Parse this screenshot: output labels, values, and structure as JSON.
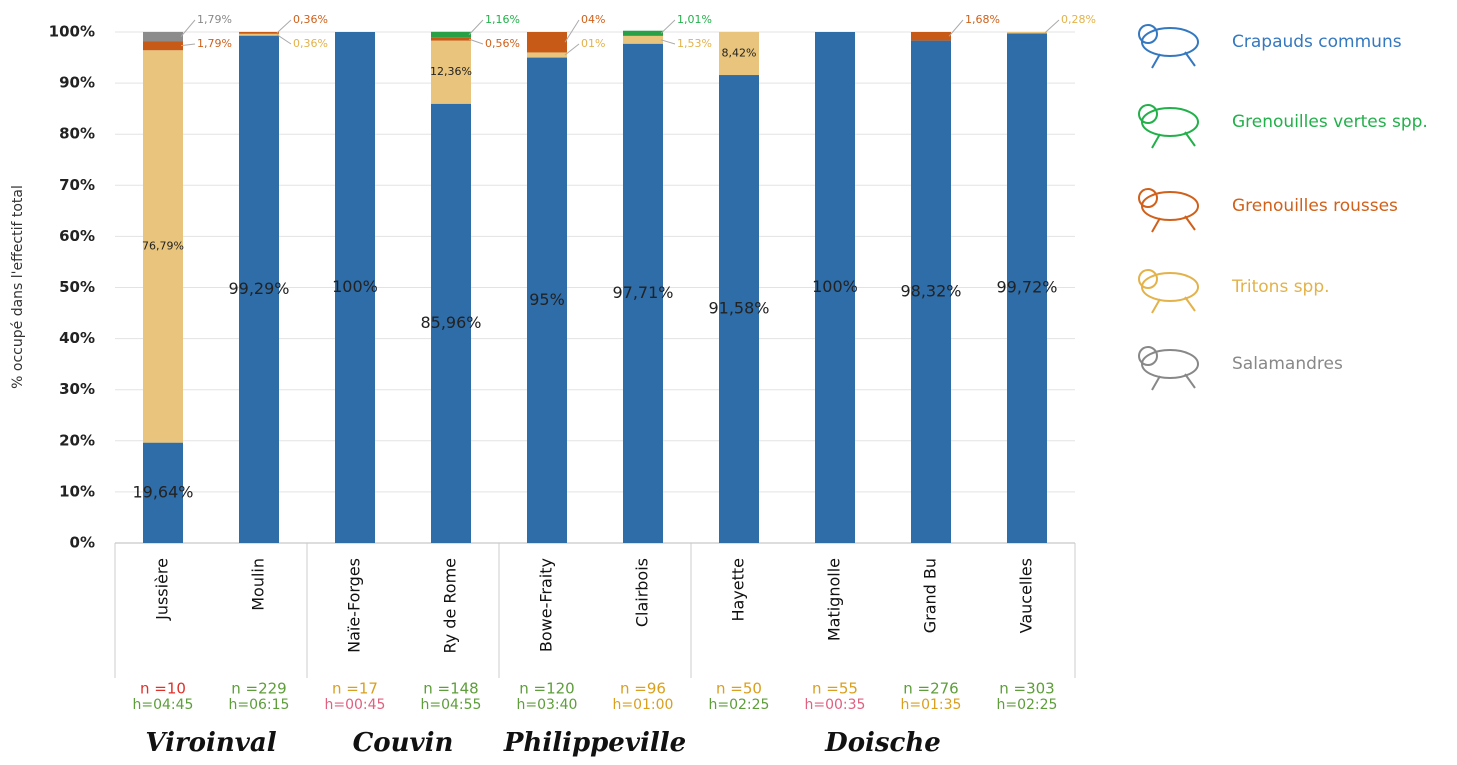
{
  "chart_data": {
    "type": "stacked_bar",
    "y_label": "% occupé dans l'effectif total",
    "categories": [
      "Jussière",
      "Moulin",
      "Naïe-Forges",
      "Ry de Rome",
      "Bowe-Fraity",
      "Clairbois",
      "Hayette",
      "Matignolle",
      "Grand Bu",
      "Vaucelles"
    ],
    "series": [
      {
        "name": "Crapauds communs",
        "color": "#2f6da8",
        "text_color": "#3478c0",
        "values": [
          19.64,
          99.29,
          100,
          85.96,
          95,
          97.71,
          91.58,
          100,
          98.32,
          99.72
        ],
        "value_labels": [
          "19,64%",
          "99,29%",
          "100%",
          "85,96%",
          "95%",
          "97,71%",
          "91,58%",
          "100%",
          "98,32%",
          "99,72%"
        ]
      },
      {
        "name": "Tritons spp.",
        "color": "#e9c47c",
        "text_color": "#e3b24a",
        "values": [
          76.79,
          0.36,
          null,
          12.36,
          1,
          1.53,
          8.42,
          null,
          null,
          0.28
        ],
        "value_labels": [
          "76,79%",
          "0,36%",
          null,
          "12,36%",
          "01%",
          "1,53%",
          "8,42%",
          null,
          null,
          "0,28%"
        ]
      },
      {
        "name": "Grenouilles rousses",
        "color": "#c65a16",
        "text_color": "#d0601a",
        "values": [
          1.79,
          0.36,
          null,
          0.56,
          4,
          null,
          null,
          null,
          1.68,
          null
        ],
        "value_labels": [
          "1,79%",
          "0,36%",
          null,
          "0,56%",
          "04%",
          null,
          null,
          null,
          "1,68%",
          null
        ]
      },
      {
        "name": "Grenouilles vertes spp.",
        "color": "#27a046",
        "text_color": "#22b04a",
        "values": [
          null,
          null,
          null,
          1.16,
          null,
          1.01,
          null,
          null,
          null,
          null
        ],
        "value_labels": [
          null,
          null,
          null,
          "1,16%",
          null,
          "1,01%",
          null,
          null,
          null,
          null
        ]
      },
      {
        "name": "Salamandres",
        "color": "#8c8c8c",
        "text_color": "#888888",
        "values": [
          1.79,
          null,
          null,
          null,
          null,
          null,
          null,
          null,
          null,
          null
        ],
        "value_labels": [
          "1,79%",
          null,
          null,
          null,
          null,
          null,
          null,
          null,
          null,
          null
        ]
      }
    ],
    "legend_order": [
      0,
      3,
      2,
      1,
      4
    ],
    "ylim": [
      0,
      100
    ],
    "yticks": [
      {
        "value": 0,
        "label": "0%"
      },
      {
        "value": 10,
        "label": "10%"
      },
      {
        "value": 20,
        "label": "20%"
      },
      {
        "value": 30,
        "label": "30%"
      },
      {
        "value": 40,
        "label": "40%"
      },
      {
        "value": 50,
        "label": "50%"
      },
      {
        "value": 60,
        "label": "60%"
      },
      {
        "value": 70,
        "label": "70%"
      },
      {
        "value": 80,
        "label": "80%"
      },
      {
        "value": 90,
        "label": "90%"
      },
      {
        "value": 100,
        "label": "100%"
      }
    ],
    "grid": true,
    "annotations": [
      {
        "n": "n =10",
        "h": "h=04:45",
        "n_color": "#e0302a",
        "h_color": "#5d9e3a"
      },
      {
        "n": "n =229",
        "h": "h=06:15",
        "n_color": "#5d9e3a",
        "h_color": "#5d9e3a"
      },
      {
        "n": "n =17",
        "h": "h=00:45",
        "n_color": "#d9a020",
        "h_color": "#e06080"
      },
      {
        "n": "n =148",
        "h": "h=04:55",
        "n_color": "#5d9e3a",
        "h_color": "#5d9e3a"
      },
      {
        "n": "n =120",
        "h": "h=03:40",
        "n_color": "#5d9e3a",
        "h_color": "#5d9e3a"
      },
      {
        "n": "n =96",
        "h": "h=01:00",
        "n_color": "#d9a020",
        "h_color": "#d9a020"
      },
      {
        "n": "n =50",
        "h": "h=02:25",
        "n_color": "#d9a020",
        "h_color": "#5d9e3a"
      },
      {
        "n": "n =55",
        "h": "h=00:35",
        "n_color": "#d9a020",
        "h_color": "#e06080"
      },
      {
        "n": "n =276",
        "h": "h=01:35",
        "n_color": "#5d9e3a",
        "h_color": "#d9a020"
      },
      {
        "n": "n =303",
        "h": "h=02:25",
        "n_color": "#5d9e3a",
        "h_color": "#5d9e3a"
      }
    ],
    "groups": [
      {
        "label": "Viroinval",
        "categories": [
          "Jussière",
          "Moulin"
        ]
      },
      {
        "label": "Couvin",
        "categories": [
          "Naïe-Forges",
          "Ry de Rome"
        ]
      },
      {
        "label": "Philippeville",
        "categories": [
          "Bowe-Fraity",
          "Clairbois"
        ]
      },
      {
        "label": "Doische",
        "categories": [
          "Hayette",
          "Matignolle",
          "Grand Bu",
          "Vaucelles"
        ]
      }
    ]
  }
}
